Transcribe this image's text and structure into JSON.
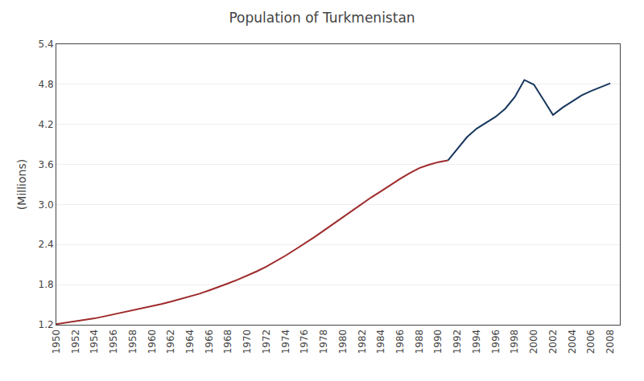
{
  "chart_data": {
    "type": "line",
    "title": "Population of Turkmenistan",
    "ylabel": "(Millions)",
    "x": [
      1950,
      1951,
      1952,
      1953,
      1954,
      1955,
      1956,
      1957,
      1958,
      1959,
      1960,
      1961,
      1962,
      1963,
      1964,
      1965,
      1966,
      1967,
      1968,
      1969,
      1970,
      1971,
      1972,
      1973,
      1974,
      1975,
      1976,
      1977,
      1978,
      1979,
      1980,
      1981,
      1982,
      1983,
      1984,
      1985,
      1986,
      1987,
      1988,
      1989,
      1990,
      1991,
      1992,
      1993,
      1994,
      1995,
      1996,
      1997,
      1998,
      1999,
      2000,
      2001,
      2002,
      2003,
      2004,
      2005,
      2006,
      2007,
      2008
    ],
    "series": [
      {
        "color": "#9e2a2b",
        "values": [
          1.21,
          1.23,
          1.25,
          1.27,
          1.295,
          1.325,
          1.355,
          1.385,
          1.415,
          1.445,
          1.475,
          1.51,
          1.545,
          1.585,
          1.625,
          1.665,
          1.715,
          1.765,
          1.82,
          1.875,
          1.935,
          2.0,
          2.07,
          2.15,
          2.235,
          2.325,
          2.415,
          2.51,
          2.61,
          2.71,
          2.815,
          2.92,
          3.015,
          3.11,
          3.2,
          3.295,
          3.385,
          3.47,
          3.545,
          3.595,
          3.635,
          3.66,
          null,
          null,
          null,
          null,
          null,
          null,
          null,
          null,
          null,
          null,
          null,
          null,
          null,
          null,
          null,
          null,
          null
        ]
      },
      {
        "color": "#17375e",
        "values": [
          null,
          null,
          null,
          null,
          null,
          null,
          null,
          null,
          null,
          null,
          null,
          null,
          null,
          null,
          null,
          null,
          null,
          null,
          null,
          null,
          null,
          null,
          null,
          null,
          null,
          null,
          null,
          null,
          null,
          null,
          null,
          null,
          null,
          null,
          null,
          null,
          null,
          null,
          null,
          null,
          null,
          3.66,
          3.84,
          4.01,
          4.135,
          4.22,
          4.315,
          4.435,
          4.61,
          4.865,
          4.795,
          4.57,
          4.34,
          4.45,
          4.545,
          4.635,
          4.7,
          4.76,
          4.815
        ]
      }
    ],
    "xlim": [
      1950,
      2009
    ],
    "xticks": [
      1950,
      1952,
      1954,
      1956,
      1958,
      1960,
      1962,
      1964,
      1966,
      1968,
      1970,
      1972,
      1974,
      1976,
      1978,
      1980,
      1982,
      1984,
      1986,
      1988,
      1990,
      1992,
      1994,
      1996,
      1998,
      2000,
      2002,
      2004,
      2006,
      2008
    ],
    "ylim": [
      1.2,
      5.4
    ],
    "yticks": [
      1.2,
      1.8,
      2.4,
      {
        "value": 3.0,
        "label": "3.0"
      },
      3.6,
      4.2,
      4.8,
      5.4
    ],
    "grid": "y"
  }
}
